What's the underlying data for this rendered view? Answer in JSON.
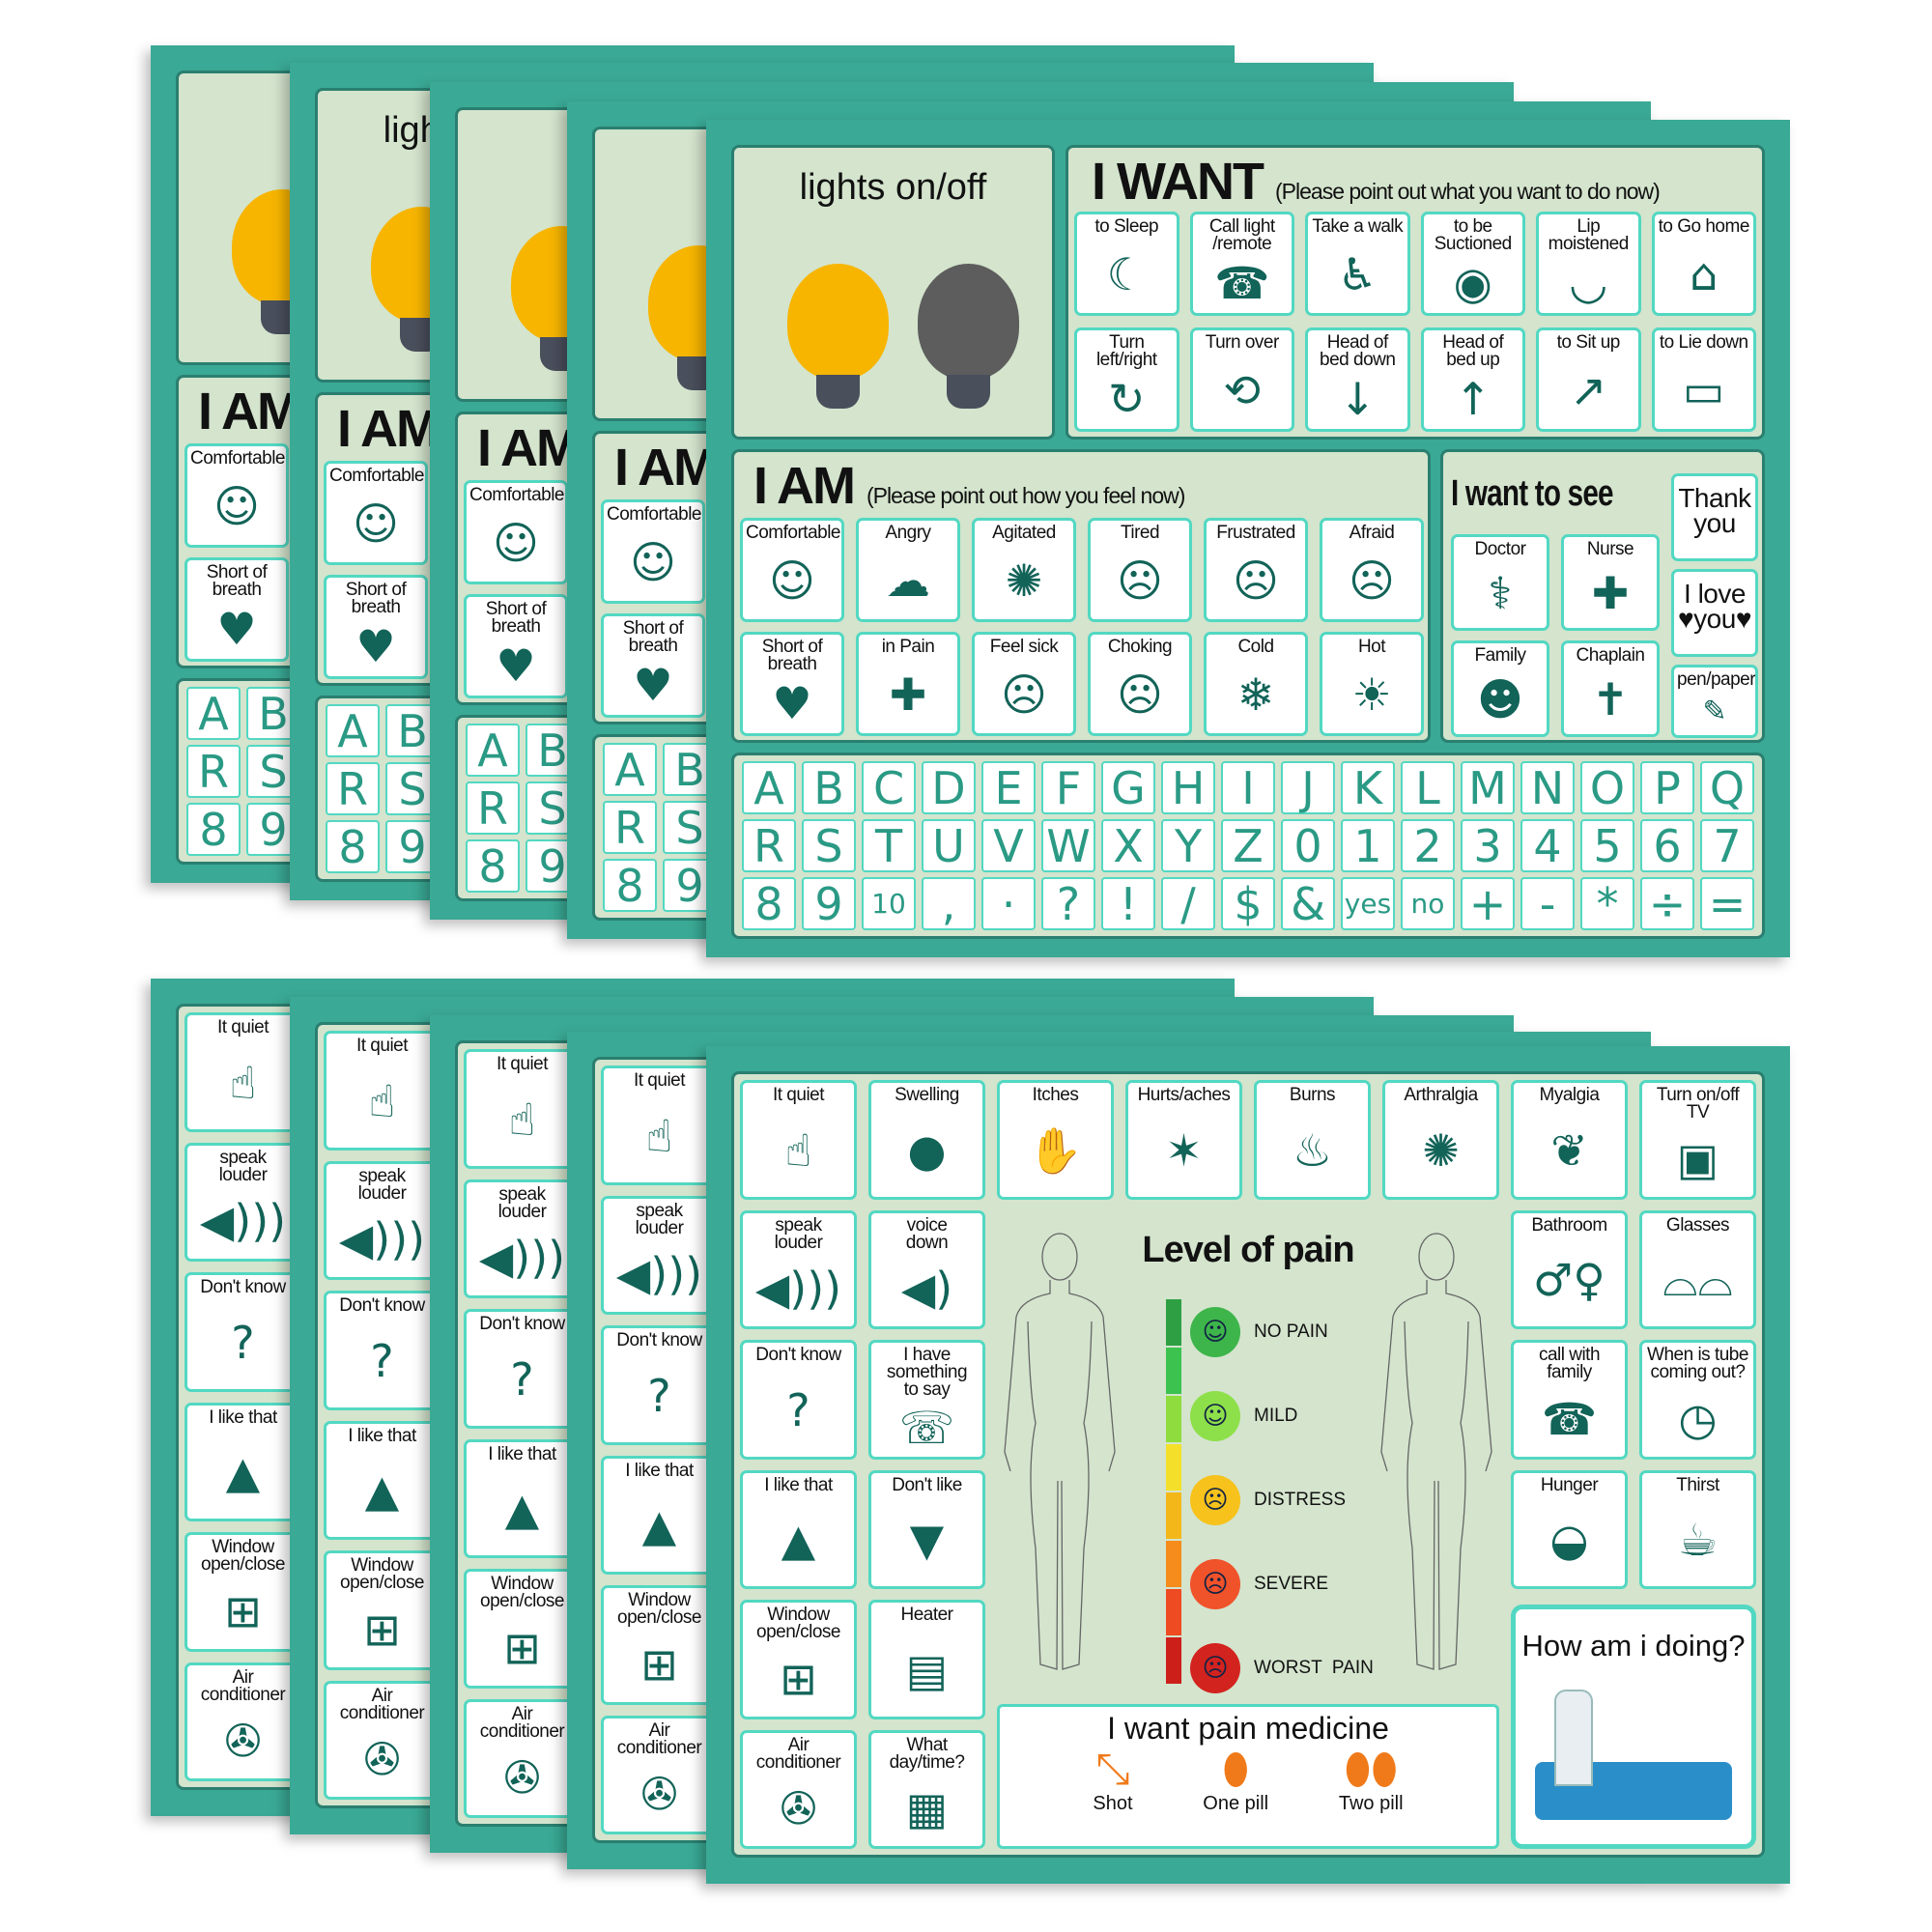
{
  "colors": {
    "card": "#3aa995",
    "panel": "#d4e4cd",
    "tile_border": "#52d8c2",
    "key_text": "#2a9a85",
    "icon": "#126358"
  },
  "top_card": {
    "lights": {
      "title": "lights on/off",
      "icons": [
        "lightbulb-on-icon",
        "lightbulb-off-icon"
      ]
    },
    "want": {
      "title": "I WANT",
      "subtitle": "(Please point out what you want to do now)",
      "items": [
        {
          "label": "to Sleep",
          "icon": "sleep"
        },
        {
          "label": "Call light\n/remote",
          "icon": "remote"
        },
        {
          "label": "Take a walk",
          "icon": "wheelchair"
        },
        {
          "label": "to be\nSuctioned",
          "icon": "mouth"
        },
        {
          "label": "Lip moistened",
          "icon": "lips"
        },
        {
          "label": "to Go home",
          "icon": "house"
        },
        {
          "label": "Turn left/right",
          "icon": "turn"
        },
        {
          "label": "Turn over",
          "icon": "turnover"
        },
        {
          "label": "Head of\nbed down",
          "icon": "bed-down"
        },
        {
          "label": "Head of\nbed up",
          "icon": "bed-up"
        },
        {
          "label": "to Sit up",
          "icon": "sit-up"
        },
        {
          "label": "to Lie down",
          "icon": "lie-down"
        }
      ]
    },
    "iam": {
      "title": "I AM",
      "subtitle": "(Please point out how you feel now)",
      "items": [
        {
          "label": "Comfortable",
          "icon": "happy"
        },
        {
          "label": "Angry",
          "icon": "angry"
        },
        {
          "label": "Agitated",
          "icon": "agitated"
        },
        {
          "label": "Tired",
          "icon": "tired"
        },
        {
          "label": "Frustrated",
          "icon": "frustrated"
        },
        {
          "label": "Afraid",
          "icon": "afraid"
        },
        {
          "label": "Short of\nbreath",
          "icon": "breath"
        },
        {
          "label": "in Pain",
          "icon": "pain"
        },
        {
          "label": "Feel sick",
          "icon": "sick"
        },
        {
          "label": "Choking",
          "icon": "choking"
        },
        {
          "label": "Cold",
          "icon": "cold"
        },
        {
          "label": "Hot",
          "icon": "hot"
        }
      ]
    },
    "see": {
      "title": "I want to see",
      "people": [
        {
          "label": "Doctor",
          "icon": "doctor"
        },
        {
          "label": "Nurse",
          "icon": "nurse"
        },
        {
          "label": "Family",
          "icon": "family"
        },
        {
          "label": "Chaplain",
          "icon": "chaplain"
        }
      ],
      "side": [
        {
          "label": "Thank\nyou",
          "icon": "none"
        },
        {
          "label": "I love\n♥you♥",
          "icon": "none"
        },
        {
          "label": "pen/paper",
          "icon": "paper"
        }
      ]
    },
    "keyboard": {
      "rows": [
        [
          "A",
          "B",
          "C",
          "D",
          "E",
          "F",
          "G",
          "H",
          "I",
          "J",
          "K",
          "L",
          "M",
          "N",
          "O",
          "P",
          "Q"
        ],
        [
          "R",
          "S",
          "T",
          "U",
          "V",
          "W",
          "X",
          "Y",
          "Z",
          "0",
          "1",
          "2",
          "3",
          "4",
          "5",
          "6",
          "7"
        ],
        [
          "8",
          "9",
          "10",
          ",",
          "·",
          "?",
          "!",
          "/",
          "$",
          "&",
          "yes",
          "no",
          "+",
          "-",
          "*",
          "÷",
          "="
        ]
      ]
    }
  },
  "bottom_card": {
    "tiles": [
      {
        "label": "It quiet",
        "icon": "quiet"
      },
      {
        "label": "Swelling",
        "icon": "swelling"
      },
      {
        "label": "Itches",
        "icon": "itches"
      },
      {
        "label": "Hurts/aches",
        "icon": "hurts"
      },
      {
        "label": "Burns",
        "icon": "burns"
      },
      {
        "label": "Arthralgia",
        "icon": "joint"
      },
      {
        "label": "Myalgia",
        "icon": "muscle"
      },
      {
        "label": "Turn on/off TV",
        "icon": "tv"
      },
      {
        "label": "speak\n louder",
        "icon": "speaker-loud"
      },
      {
        "label": "voice\n down",
        "icon": "speaker-low"
      },
      {
        "label": "Bathroom",
        "icon": "bathroom"
      },
      {
        "label": "Glasses",
        "icon": "glasses"
      },
      {
        "label": "Don't know",
        "icon": "question"
      },
      {
        "label": "I have\nsomething\nto say",
        "icon": "speech"
      },
      {
        "label": "call with\n family",
        "icon": "phone"
      },
      {
        "label": "When is tube\ncoming out?",
        "icon": "clock"
      },
      {
        "label": "I like that",
        "icon": "thumbs-up"
      },
      {
        "label": "Don't like",
        "icon": "thumbs-down"
      },
      {
        "label": "Hunger",
        "icon": "bread"
      },
      {
        "label": "Thirst",
        "icon": "water"
      },
      {
        "label": "Window\n open/close",
        "icon": "window"
      },
      {
        "label": "Heater",
        "icon": "heater"
      },
      {
        "label": "Air conditioner",
        "icon": "fan"
      },
      {
        "label": "What\n day/time?",
        "icon": "calendar"
      }
    ],
    "pain": {
      "title": "Level of pain",
      "levels": [
        {
          "label": "NO PAIN",
          "color": "#3db54a"
        },
        {
          "label": "MILD",
          "color": "#8ee04a"
        },
        {
          "label": "DISTRESS",
          "color": "#f7c21b"
        },
        {
          "label": "SEVERE",
          "color": "#f0522a"
        },
        {
          "label": "WORST  PAIN",
          "color": "#d3231f"
        }
      ],
      "scale_colors": [
        "#2ea043",
        "#3cc24f",
        "#8fdc3e",
        "#f4e02a",
        "#f4b71a",
        "#f58c1c",
        "#ee4b22",
        "#cc1f1a"
      ]
    },
    "medicine": {
      "title": "I want pain medicine",
      "options": [
        {
          "label": "Shot",
          "icon": "syringe"
        },
        {
          "label": "One pill",
          "icon": "pill"
        },
        {
          "label": "Two pill",
          "icon": "pills"
        }
      ]
    },
    "status": {
      "title": "How am i doing?"
    }
  }
}
